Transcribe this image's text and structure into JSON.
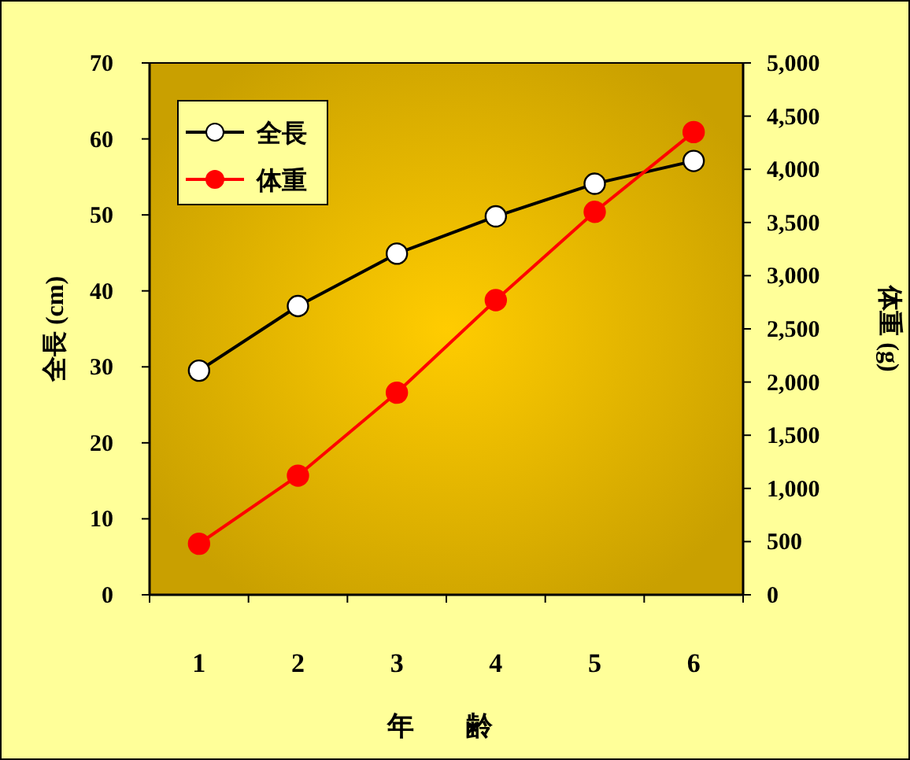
{
  "chart_data": {
    "type": "line",
    "xlabel": "年　齢",
    "ylabel": "全長 (cm)",
    "y2label": "体重 (g)",
    "categories": [
      "1",
      "2",
      "3",
      "4",
      "5",
      "6"
    ],
    "series": [
      {
        "name": "全長",
        "color": "#000000",
        "values": [
          29.5,
          38.0,
          44.9,
          49.8,
          54.1,
          57.1
        ]
      },
      {
        "name": "体重",
        "color": "#ff0000",
        "axis": "y2",
        "values": [
          480,
          1120,
          1900,
          2770,
          3600,
          4350
        ]
      }
    ],
    "ylim": [
      0,
      70
    ],
    "yticks": [
      0,
      10,
      20,
      30,
      40,
      50,
      60,
      70
    ],
    "y2lim": [
      0,
      5000
    ],
    "y2ticks": [
      0,
      {
        "value": 500,
        "label": "500"
      },
      {
        "value": 1000,
        "label": "1,000"
      },
      {
        "value": 1500,
        "label": "1,500"
      },
      {
        "value": 2000,
        "label": "2,000"
      },
      {
        "value": 2500,
        "label": "2,500"
      },
      {
        "value": 3000,
        "label": "3,000"
      },
      {
        "value": 3500,
        "label": "3,500"
      },
      {
        "value": 4000,
        "label": "4,000"
      },
      {
        "value": 4500,
        "label": "4,500"
      },
      {
        "value": 5000,
        "label": "5,000"
      }
    ],
    "legend": "top left",
    "marker": "circle",
    "grid": false
  }
}
